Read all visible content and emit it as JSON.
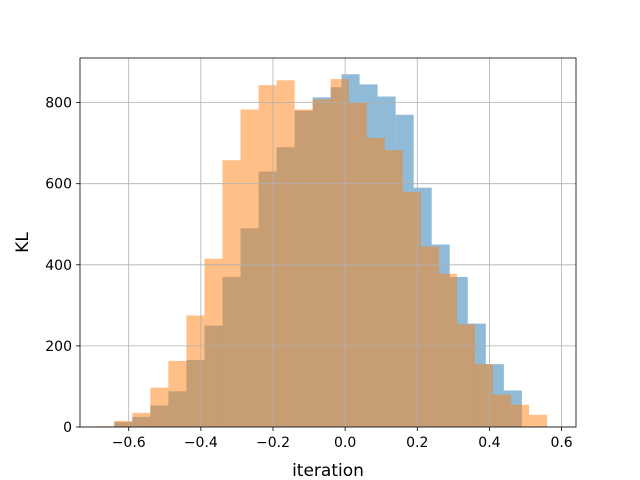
{
  "chart_data": {
    "type": "histogram",
    "title": "",
    "xlabel": "iteration",
    "ylabel": "KL",
    "xlim": [
      -0.735,
      0.64
    ],
    "ylim": [
      0,
      910
    ],
    "grid": true,
    "legend": "none",
    "x_ticks": [
      -0.6,
      -0.4,
      -0.2,
      0.0,
      0.2,
      0.4,
      0.6
    ],
    "x_tick_labels": [
      "−0.6",
      "−0.4",
      "−0.2",
      "0.0",
      "0.2",
      "0.4",
      "0.6"
    ],
    "y_ticks": [
      0,
      200,
      400,
      600,
      800
    ],
    "y_tick_labels": [
      "0",
      "200",
      "400",
      "600",
      "800"
    ],
    "series": [
      {
        "color": "#1f77b4",
        "opacity": 0.5,
        "bin_edges": [
          -0.64,
          -0.59,
          -0.54,
          -0.49,
          -0.44,
          -0.39,
          -0.34,
          -0.29,
          -0.24,
          -0.19,
          -0.14,
          -0.09,
          -0.04,
          -0.01,
          0.04,
          0.09,
          0.14,
          0.19,
          0.24,
          0.29,
          0.34,
          0.39,
          0.44,
          0.49
        ],
        "counts": [
          12,
          25,
          53,
          88,
          165,
          250,
          370,
          490,
          630,
          690,
          780,
          813,
          838,
          870,
          845,
          815,
          770,
          590,
          450,
          370,
          255,
          155,
          90,
          20
        ]
      },
      {
        "color": "#ff7f0e",
        "opacity": 0.5,
        "bin_edges": [
          -0.69,
          -0.64,
          -0.59,
          -0.54,
          -0.49,
          -0.44,
          -0.39,
          -0.34,
          -0.29,
          -0.24,
          -0.19,
          -0.14,
          -0.09,
          -0.04,
          0.01,
          0.06,
          0.11,
          0.16,
          0.21,
          0.26,
          0.31,
          0.36,
          0.41,
          0.46,
          0.51,
          0.56
        ],
        "counts": [
          2,
          15,
          35,
          97,
          163,
          275,
          415,
          658,
          783,
          843,
          855,
          783,
          808,
          858,
          800,
          713,
          683,
          580,
          445,
          378,
          253,
          155,
          80,
          55,
          30,
          10
        ]
      }
    ]
  }
}
